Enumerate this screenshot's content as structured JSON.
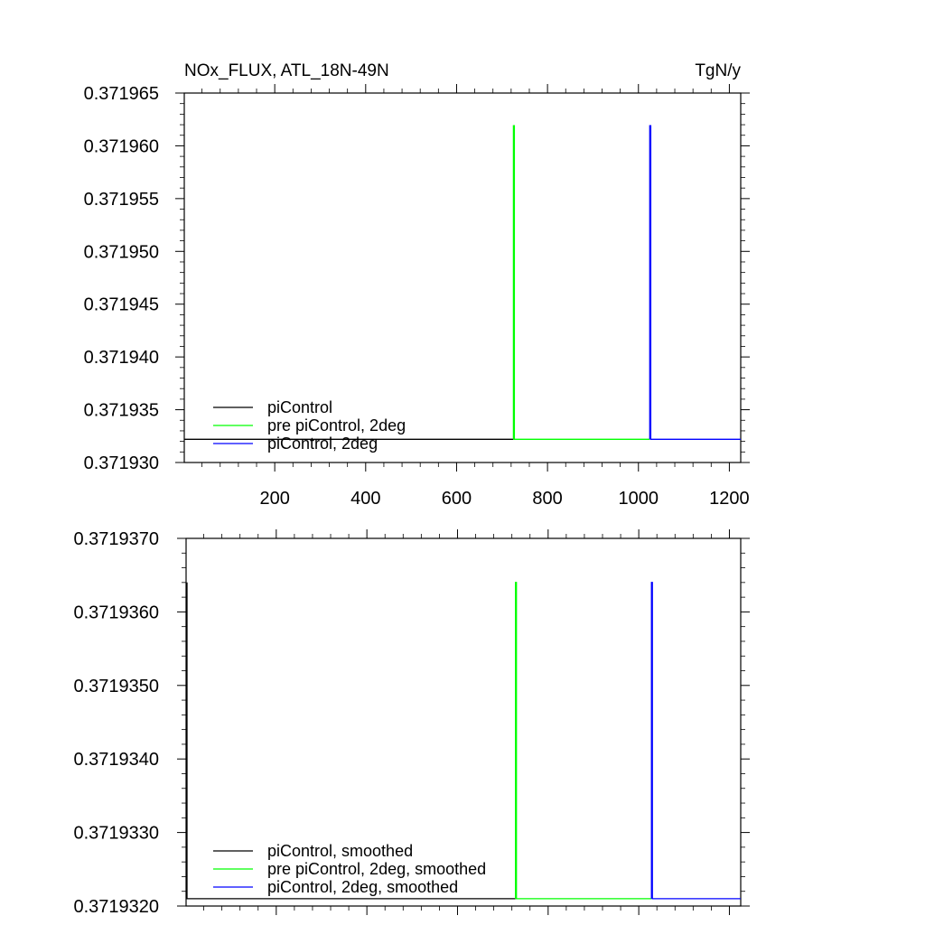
{
  "header": {
    "left_title": "NOx_FLUX, ATL_18N-49N",
    "units": "TgN/y"
  },
  "colors": {
    "piControl": "#000000",
    "pre_piControl_2deg": "#00ff00",
    "piControl_2deg": "#0000ff"
  },
  "chart_data": [
    {
      "type": "line",
      "title": "NOx_FLUX, ATL_18N-49N",
      "units_label": "TgN/y",
      "xlim": [
        1,
        1225
      ],
      "ylim": [
        0.37193,
        0.371965
      ],
      "y_ticks": [
        0.37193,
        0.371935,
        0.37194,
        0.371945,
        0.37195,
        0.371955,
        0.37196,
        0.371965
      ],
      "y_tick_labels": [
        "0.371930",
        "0.371935",
        "0.371940",
        "0.371945",
        "0.371950",
        "0.371955",
        "0.371960",
        "0.371965"
      ],
      "x_ticks": [
        200,
        400,
        600,
        800,
        1000,
        1200
      ],
      "x_tick_labels": [
        "200",
        "400",
        "600",
        "800",
        "1000",
        "1200"
      ],
      "grid": false,
      "legend_position": "bottom-left",
      "series": [
        {
          "name": "piControl",
          "color": "#000000",
          "points": [
            [
              1,
              0.3719322
            ],
            [
              725,
              0.3719322
            ]
          ]
        },
        {
          "name": "pre piControl, 2deg",
          "color": "#00ff00",
          "points": [
            [
              725,
              0.3719322
            ],
            [
              725,
              0.3719619
            ],
            [
              727,
              0.3719619
            ],
            [
              727,
              0.3719322
            ],
            [
              1025,
              0.3719322
            ]
          ]
        },
        {
          "name": "piControl, 2deg",
          "color": "#0000ff",
          "points": [
            [
              1025,
              0.3719322
            ],
            [
              1025,
              0.3719619
            ],
            [
              1027,
              0.3719619
            ],
            [
              1027,
              0.3719322
            ],
            [
              1225,
              0.3719322
            ]
          ]
        }
      ]
    },
    {
      "type": "line",
      "title": "",
      "xlim": [
        1,
        1225
      ],
      "ylim": [
        0.371932,
        0.371937
      ],
      "y_ticks": [
        0.371932,
        0.371933,
        0.371934,
        0.371935,
        0.371936,
        0.371937
      ],
      "y_tick_labels": [
        "0.3719320",
        "0.3719330",
        "0.3719340",
        "0.3719350",
        "0.3719360",
        "0.3719370"
      ],
      "x_ticks": [
        200,
        400,
        600,
        800,
        1000,
        1200
      ],
      "x_tick_labels": [],
      "grid": false,
      "legend_position": "bottom-left",
      "series": [
        {
          "name": "piControl, smoothed",
          "color": "#000000",
          "points": [
            [
              3,
              0.3719364
            ],
            [
              3,
              0.3719321
            ],
            [
              728,
              0.3719321
            ]
          ]
        },
        {
          "name": "pre piControl, 2deg, smoothed",
          "color": "#00ff00",
          "points": [
            [
              728,
              0.3719321
            ],
            [
              728,
              0.3719364
            ],
            [
              730,
              0.3719364
            ],
            [
              730,
              0.3719321
            ],
            [
              1028,
              0.3719321
            ]
          ]
        },
        {
          "name": "piControl, 2deg, smoothed",
          "color": "#0000ff",
          "points": [
            [
              1028,
              0.3719321
            ],
            [
              1028,
              0.3719364
            ],
            [
              1030,
              0.3719364
            ],
            [
              1030,
              0.3719321
            ],
            [
              1225,
              0.3719321
            ]
          ]
        }
      ]
    }
  ]
}
